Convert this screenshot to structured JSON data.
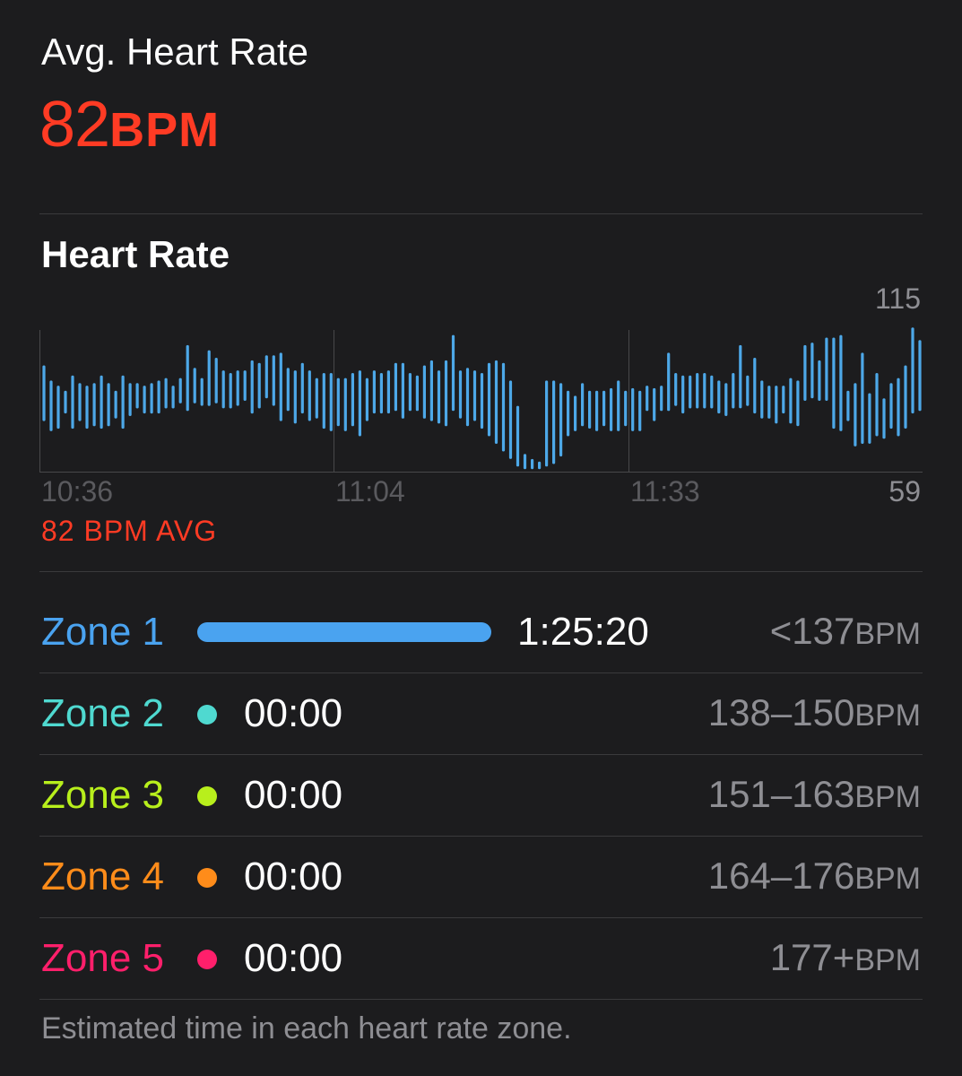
{
  "summary": {
    "avg_label": "Avg. Heart Rate",
    "avg_value": "82",
    "avg_unit": "BPM",
    "accent_color": "#ff3b24"
  },
  "chart_section": {
    "title": "Heart Rate",
    "avg_text": "82 BPM AVG"
  },
  "chart_data": {
    "type": "bar",
    "title": "",
    "x_tick_labels": [
      "10:36",
      "11:04",
      "11:33"
    ],
    "y_max_label": "115",
    "y_min_label": "59",
    "ylim": [
      59,
      115
    ],
    "bar_color": "#4da8e8",
    "grid": "vertical",
    "ranges": [
      [
        79,
        101
      ],
      [
        75,
        95
      ],
      [
        76,
        93
      ],
      [
        82,
        91
      ],
      [
        76,
        97
      ],
      [
        79,
        94
      ],
      [
        76,
        93
      ],
      [
        77,
        94
      ],
      [
        76,
        97
      ],
      [
        77,
        94
      ],
      [
        80,
        91
      ],
      [
        76,
        97
      ],
      [
        81,
        94
      ],
      [
        84,
        94
      ],
      [
        82,
        93
      ],
      [
        82,
        94
      ],
      [
        82,
        95
      ],
      [
        84,
        96
      ],
      [
        84,
        93
      ],
      [
        86,
        96
      ],
      [
        83,
        109
      ],
      [
        86,
        100
      ],
      [
        85,
        96
      ],
      [
        85,
        107
      ],
      [
        86,
        104
      ],
      [
        84,
        99
      ],
      [
        84,
        98
      ],
      [
        85,
        99
      ],
      [
        87,
        99
      ],
      [
        82,
        103
      ],
      [
        84,
        102
      ],
      [
        88,
        105
      ],
      [
        85,
        105
      ],
      [
        79,
        106
      ],
      [
        83,
        100
      ],
      [
        78,
        99
      ],
      [
        82,
        102
      ],
      [
        79,
        99
      ],
      [
        80,
        96
      ],
      [
        76,
        98
      ],
      [
        75,
        98
      ],
      [
        77,
        96
      ],
      [
        75,
        96
      ],
      [
        77,
        98
      ],
      [
        73,
        99
      ],
      [
        79,
        96
      ],
      [
        82,
        99
      ],
      [
        82,
        98
      ],
      [
        82,
        99
      ],
      [
        83,
        102
      ],
      [
        80,
        102
      ],
      [
        83,
        98
      ],
      [
        83,
        97
      ],
      [
        80,
        101
      ],
      [
        79,
        103
      ],
      [
        78,
        99
      ],
      [
        77,
        103
      ],
      [
        83,
        113
      ],
      [
        80,
        99
      ],
      [
        77,
        100
      ],
      [
        79,
        99
      ],
      [
        76,
        98
      ],
      [
        73,
        102
      ],
      [
        70,
        103
      ],
      [
        67,
        102
      ],
      [
        64,
        95
      ],
      [
        61,
        85
      ],
      [
        60,
        66
      ],
      [
        60,
        64
      ],
      [
        60,
        63
      ],
      [
        61,
        95
      ],
      [
        62,
        95
      ],
      [
        65,
        94
      ],
      [
        73,
        91
      ],
      [
        75,
        89
      ],
      [
        77,
        94
      ],
      [
        76,
        91
      ],
      [
        75,
        91
      ],
      [
        77,
        91
      ],
      [
        75,
        92
      ],
      [
        75,
        95
      ],
      [
        77,
        91
      ],
      [
        75,
        92
      ],
      [
        75,
        91
      ],
      [
        83,
        93
      ],
      [
        79,
        92
      ],
      [
        83,
        93
      ],
      [
        83,
        106
      ],
      [
        85,
        98
      ],
      [
        82,
        97
      ],
      [
        84,
        97
      ],
      [
        84,
        98
      ],
      [
        84,
        98
      ],
      [
        84,
        97
      ],
      [
        82,
        95
      ],
      [
        81,
        94
      ],
      [
        84,
        98
      ],
      [
        84,
        109
      ],
      [
        85,
        97
      ],
      [
        82,
        104
      ],
      [
        80,
        95
      ],
      [
        80,
        93
      ],
      [
        78,
        93
      ],
      [
        82,
        93
      ],
      [
        78,
        96
      ],
      [
        77,
        95
      ],
      [
        87,
        109
      ],
      [
        88,
        110
      ],
      [
        87,
        103
      ],
      [
        87,
        112
      ],
      [
        76,
        112
      ],
      [
        75,
        113
      ],
      [
        79,
        91
      ],
      [
        69,
        94
      ],
      [
        70,
        106
      ],
      [
        70,
        90
      ],
      [
        73,
        98
      ],
      [
        72,
        88
      ],
      [
        76,
        94
      ],
      [
        73,
        96
      ],
      [
        76,
        101
      ],
      [
        82,
        116
      ],
      [
        83,
        111
      ]
    ]
  },
  "zones": [
    {
      "name": "Zone 1",
      "color": "#4aa3f0",
      "time": "1:25:20",
      "range": "<137",
      "unit": "BPM",
      "share": 1.0
    },
    {
      "name": "Zone 2",
      "color": "#4fd9d0",
      "time": "00:00",
      "range": "138–150",
      "unit": "BPM",
      "share": 0.0
    },
    {
      "name": "Zone 3",
      "color": "#b8ef1c",
      "time": "00:00",
      "range": "151–163",
      "unit": "BPM",
      "share": 0.0
    },
    {
      "name": "Zone 4",
      "color": "#ff8c1a",
      "time": "00:00",
      "range": "164–176",
      "unit": "BPM",
      "share": 0.0
    },
    {
      "name": "Zone 5",
      "color": "#ff1f6b",
      "time": "00:00",
      "range": "177+",
      "unit": "BPM",
      "share": 0.0
    }
  ],
  "footnote": "Estimated time in each heart rate zone."
}
